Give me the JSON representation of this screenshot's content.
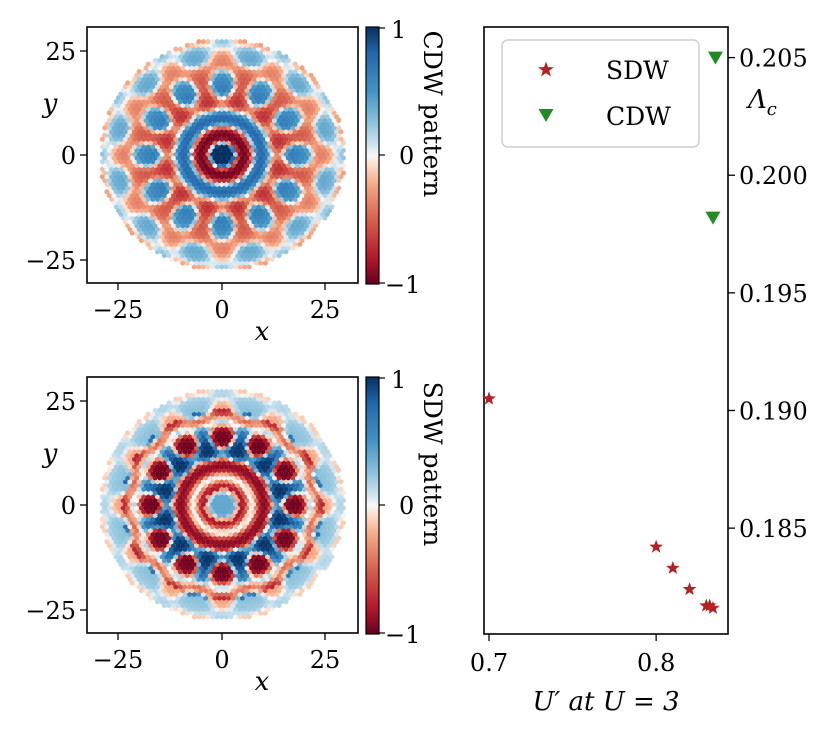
{
  "chart_data": [
    {
      "type": "heatmap",
      "title": "",
      "xlabel": "x",
      "ylabel": "y",
      "xlim": [
        -31,
        31
      ],
      "ylim": [
        -31,
        31
      ],
      "xticks": [
        "−25",
        "0",
        "25"
      ],
      "yticks": [
        "25",
        "0",
        "−25"
      ],
      "colorbar": {
        "label": "CDW pattern",
        "ticks": [
          "1",
          "0",
          "−1"
        ],
        "range": [
          -1,
          1
        ],
        "colormap": "RdBu"
      },
      "pattern_kind": "cdw",
      "disk_radius": 28
    },
    {
      "type": "heatmap",
      "title": "",
      "xlabel": "x",
      "ylabel": "y",
      "xlim": [
        -31,
        31
      ],
      "ylim": [
        -31,
        31
      ],
      "xticks": [
        "−25",
        "0",
        "25"
      ],
      "yticks": [
        "25",
        "0",
        "−25"
      ],
      "colorbar": {
        "label": "SDW pattern",
        "ticks": [
          "1",
          "0",
          "−1"
        ],
        "range": [
          -1,
          1
        ],
        "colormap": "RdBu"
      },
      "pattern_kind": "sdw",
      "disk_radius": 28
    },
    {
      "type": "scatter",
      "title": "",
      "xlabel": "U′ at U = 3",
      "ylabel": "Λ_c",
      "ylabel_main": "Λ",
      "ylabel_sub": "c",
      "xlim": [
        0.697,
        0.843
      ],
      "ylim": [
        0.1805,
        0.2063
      ],
      "xticks": [
        0.7,
        0.8
      ],
      "xtick_labels": [
        "0.7",
        "0.8"
      ],
      "yticks": [
        0.185,
        0.19,
        0.195,
        0.2,
        0.205
      ],
      "ytick_labels": [
        "0.185",
        "0.190",
        "0.195",
        "0.200",
        "0.205"
      ],
      "legend_position": "top-left",
      "series": [
        {
          "name": "SDW",
          "marker": "star",
          "color": "#b22222",
          "x": [
            0.7,
            0.8,
            0.81,
            0.82,
            0.83,
            0.832,
            0.834
          ],
          "y": [
            0.1905,
            0.1842,
            0.1833,
            0.1824,
            0.1817,
            0.1817,
            0.1816
          ]
        },
        {
          "name": "CDW",
          "marker": "triangle-down",
          "color": "#228b22",
          "x": [
            0.8355,
            0.834
          ],
          "y": [
            0.205,
            0.1982
          ]
        }
      ]
    }
  ]
}
